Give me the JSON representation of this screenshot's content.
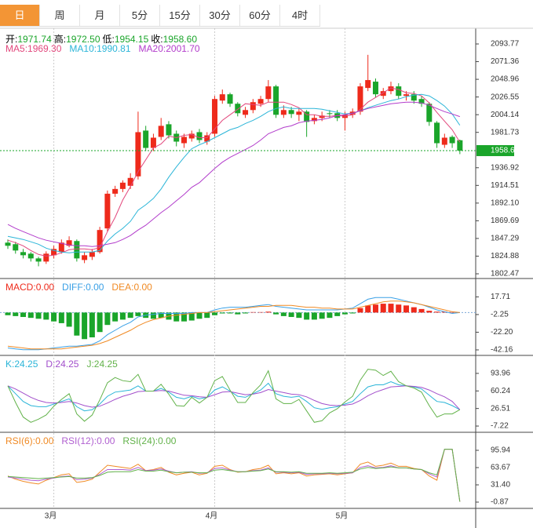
{
  "tabs": [
    "日",
    "周",
    "月",
    "5分",
    "15分",
    "30分",
    "60分",
    "4时"
  ],
  "active_tab": 0,
  "chart_data": [
    {
      "type": "candlestick",
      "up_color": "#ee2a1b",
      "down_color": "#1aa52a",
      "last_price_line": true,
      "header": [
        {
          "name": "开",
          "label": "1971.74"
        },
        {
          "name": "高",
          "label": "1972.50"
        },
        {
          "name": "低",
          "label": "1954.15"
        },
        {
          "name": "收",
          "label": "1958.60"
        }
      ],
      "categories": [
        null,
        null,
        null,
        null,
        null,
        null,
        "3月",
        null,
        null,
        null,
        null,
        null,
        null,
        null,
        null,
        null,
        null,
        null,
        null,
        null,
        null,
        null,
        null,
        null,
        null,
        null,
        null,
        "4月",
        null,
        null,
        null,
        null,
        null,
        null,
        null,
        null,
        null,
        null,
        null,
        null,
        null,
        null,
        null,
        null,
        "5月",
        null,
        null,
        null,
        null,
        null,
        null,
        null,
        null,
        null,
        null,
        null,
        null,
        null,
        null,
        null
      ],
      "open": [
        1842,
        1840,
        1830,
        1828,
        1822,
        1818,
        1826,
        1830,
        1838,
        1844,
        1820,
        1824,
        1830,
        1860,
        1904,
        1910,
        1914,
        1926,
        1984,
        1962,
        1976,
        1992,
        1980,
        1968,
        1974,
        1982,
        1970,
        1980,
        2022,
        2030,
        2018,
        2004,
        2010,
        2018,
        2024,
        2040,
        2004,
        2010,
        2004,
        2008,
        1996,
        2000,
        2006,
        2006,
        2000,
        2004,
        2008,
        2038,
        2046,
        2028,
        2034,
        2040,
        2028,
        2030,
        2024,
        2018,
        1994,
        1966,
        1976,
        1971.74
      ],
      "high": [
        1846,
        1843,
        1834,
        1830,
        1824,
        1831,
        1838,
        1846,
        1850,
        1846,
        1830,
        1834,
        1862,
        1908,
        1914,
        1921,
        1930,
        2008,
        1990,
        1980,
        2000,
        1996,
        1984,
        1980,
        1984,
        1986,
        1982,
        2028,
        2036,
        2032,
        2020,
        2014,
        2024,
        2028,
        2048,
        2042,
        2016,
        2014,
        2012,
        2010,
        2004,
        2008,
        2010,
        2010,
        2008,
        2012,
        2044,
        2080,
        2050,
        2038,
        2046,
        2044,
        2034,
        2034,
        2028,
        2020,
        1996,
        1980,
        1978,
        1972.5
      ],
      "low": [
        1834,
        1828,
        1822,
        1818,
        1812,
        1815,
        1822,
        1828,
        1836,
        1818,
        1816,
        1820,
        1828,
        1856,
        1900,
        1906,
        1910,
        1922,
        1958,
        1958,
        1972,
        1974,
        1964,
        1962,
        1970,
        1968,
        1966,
        1976,
        2018,
        2014,
        2002,
        2000,
        2006,
        2014,
        2020,
        2000,
        2000,
        2000,
        1996,
        1976,
        1992,
        1996,
        2000,
        1996,
        1984,
        2000,
        2004,
        2034,
        2026,
        2024,
        2030,
        2024,
        2022,
        2018,
        2014,
        1990,
        1962,
        1962,
        1962,
        1954.15
      ],
      "close": [
        1838,
        1832,
        1826,
        1822,
        1818,
        1828,
        1834,
        1842,
        1845,
        1822,
        1826,
        1830,
        1858,
        1904,
        1910,
        1918,
        1924,
        1982,
        1962,
        1975,
        1990,
        1978,
        1970,
        1976,
        1980,
        1972,
        1978,
        2024,
        2030,
        2018,
        2006,
        2010,
        2020,
        2024,
        2040,
        2004,
        2010,
        2005,
        2008,
        1995,
        2000,
        2003,
        2005,
        2000,
        2004,
        2008,
        2040,
        2048,
        2030,
        2034,
        2040,
        2028,
        2030,
        2022,
        2018,
        1995,
        1968,
        1975,
        1968,
        1958.6
      ],
      "series": [
        {
          "name": "MA5",
          "color": "#e2477c",
          "last_label": "1969.30",
          "values": [
            1845,
            1842,
            1838,
            1832,
            1827,
            1825,
            1826,
            1829,
            1833,
            1834,
            1834,
            1833,
            1836,
            1856,
            1874,
            1896,
            1913,
            1932,
            1947,
            1962,
            1967,
            1977,
            1975,
            1978,
            1979,
            1975,
            1975,
            1986,
            1997,
            2004,
            2011,
            2018,
            2017,
            2016,
            2020,
            2020,
            2020,
            2017,
            2013,
            2004,
            2004,
            2002,
            2002,
            2003,
            2002,
            2004,
            2011,
            2020,
            2026,
            2032,
            2038,
            2036,
            2032,
            2031,
            2028,
            2019,
            2007,
            1996,
            1985,
            1969.3
          ]
        },
        {
          "name": "MA10",
          "color": "#2bb5d8",
          "last_label": "1990.81",
          "values": [
            1850,
            1848,
            1846,
            1843,
            1840,
            1835,
            1832,
            1830,
            1829,
            1830,
            1830,
            1830,
            1832,
            1844,
            1853,
            1860,
            1869,
            1883,
            1890,
            1898,
            1910,
            1925,
            1938,
            1950,
            1961,
            1966,
            1970,
            1975,
            1980,
            1985,
            1988,
            1993,
            1997,
            2002,
            2008,
            2012,
            2014,
            2012,
            2012,
            2012,
            2012,
            2011,
            2009,
            2007,
            2005,
            2006,
            2009,
            2013,
            2016,
            2019,
            2022,
            2024,
            2027,
            2029,
            2030,
            2028,
            2022,
            2015,
            2005,
            1990.81
          ]
        },
        {
          "name": "MA20",
          "color": "#b23ccb",
          "last_label": "2001.70",
          "values": [
            1865,
            1860,
            1856,
            1852,
            1848,
            1845,
            1843,
            1841,
            1839,
            1838,
            1838,
            1837,
            1838,
            1840,
            1842,
            1846,
            1851,
            1858,
            1864,
            1872,
            1880,
            1887,
            1895,
            1903,
            1912,
            1918,
            1927,
            1936,
            1944,
            1950,
            1955,
            1960,
            1965,
            1972,
            1980,
            1984,
            1988,
            1990,
            1994,
            1996,
            1997,
            1998,
            2000,
            2003,
            2004,
            2006,
            2009,
            2012,
            2014,
            2016,
            2018,
            2019,
            2020,
            2020,
            2019,
            2016,
            2012,
            2008,
            2005,
            2001.7
          ]
        }
      ],
      "ylim": [
        1799.5,
        2109.7
      ],
      "yticks": [
        2093.77,
        2071.36,
        2048.96,
        2026.55,
        2004.14,
        1981.73,
        1936.92,
        1914.51,
        {
          "value": 1892.1,
          "label": "1892.10"
        },
        1869.69,
        1847.29,
        1824.88,
        1802.47
      ]
    },
    {
      "type": "macd",
      "up_color": "#ee2a1b",
      "down_color": "#1aa52a",
      "series": [
        {
          "name": "MACD",
          "style": "histogram",
          "color": "#ee2a1b",
          "last_label": "0.00",
          "values": [
            -3,
            -4,
            -5,
            -6,
            -7,
            -8,
            -10,
            -12,
            -16,
            -26,
            -30,
            -28,
            -22,
            -14,
            -10,
            -8,
            -6,
            -4,
            -6,
            -7,
            -6,
            -8,
            -10,
            -10,
            -9,
            -7,
            -6,
            -3,
            -1,
            -1,
            -2,
            -1,
            0.5,
            0.5,
            1,
            -2,
            -4,
            -5,
            -6,
            -8,
            -8,
            -7,
            -6,
            -4,
            -2,
            -1,
            5,
            8,
            9,
            10,
            10,
            9,
            8,
            6,
            4,
            2,
            1,
            1,
            0.5,
            0
          ]
        },
        {
          "name": "DIFF",
          "style": "line",
          "color": "#3aa0e6",
          "last_label": "0.00",
          "values": [
            -40,
            -41,
            -42,
            -42,
            -42,
            -41,
            -40,
            -39,
            -38,
            -38,
            -37,
            -36,
            -32,
            -25,
            -20,
            -15,
            -11,
            -5,
            -3,
            -2,
            -1,
            -1,
            -1,
            -1,
            0,
            0,
            0,
            3,
            5,
            6,
            6,
            6,
            7,
            8,
            9,
            7,
            6,
            5,
            4,
            3,
            3,
            3,
            3,
            3,
            4,
            5,
            10,
            15,
            17,
            17,
            17,
            15,
            13,
            11,
            9,
            6,
            3,
            1,
            -1,
            0
          ]
        },
        {
          "name": "DEA",
          "style": "line",
          "color": "#f08a24",
          "last_label": "0.00",
          "values": [
            -38,
            -39,
            -40,
            -41,
            -41,
            -41,
            -41,
            -41,
            -40,
            -39,
            -38,
            -37,
            -35,
            -32,
            -28,
            -24,
            -20,
            -15,
            -11,
            -8,
            -6,
            -4,
            -3,
            -2,
            -1,
            0,
            0,
            1,
            2,
            3,
            4,
            5,
            6,
            7,
            7,
            8,
            8,
            8,
            7,
            6,
            6,
            5,
            5,
            4,
            4,
            4,
            6,
            8,
            10,
            12,
            13,
            13,
            12,
            11,
            9,
            7,
            5,
            3,
            1,
            0
          ]
        }
      ],
      "ylim": [
        -47.5,
        34
      ],
      "yticks": [
        17.71,
        -2.25,
        {
          "value": -22.2,
          "label": "-22.20"
        },
        -42.16
      ]
    },
    {
      "type": "line",
      "series": [
        {
          "name": "K",
          "color": "#2bb5d8",
          "last_label": "24.25",
          "values": [
            70,
            55,
            40,
            32,
            30,
            30,
            35,
            40,
            45,
            30,
            22,
            24,
            35,
            50,
            58,
            60,
            62,
            70,
            60,
            60,
            65,
            58,
            48,
            45,
            50,
            45,
            48,
            62,
            68,
            60,
            50,
            48,
            55,
            62,
            75,
            55,
            50,
            48,
            50,
            40,
            28,
            25,
            28,
            30,
            35,
            40,
            55,
            68,
            72,
            72,
            78,
            72,
            70,
            68,
            64,
            52,
            40,
            38,
            32,
            24.25
          ]
        },
        {
          "name": "D",
          "color": "#a24fcb",
          "last_label": "24.25",
          "values": [
            70,
            64,
            56,
            48,
            42,
            38,
            37,
            38,
            40,
            37,
            32,
            29,
            31,
            37,
            44,
            50,
            54,
            59,
            60,
            60,
            61,
            60,
            56,
            52,
            51,
            49,
            48,
            53,
            58,
            59,
            56,
            53,
            54,
            57,
            63,
            60,
            57,
            54,
            53,
            49,
            42,
            36,
            33,
            32,
            33,
            35,
            42,
            51,
            58,
            63,
            68,
            69,
            70,
            69,
            67,
            62,
            55,
            49,
            40,
            24.25
          ]
        },
        {
          "name": "J",
          "color": "#62b24a",
          "last_label": "24.25",
          "values": [
            70,
            38,
            10,
            0,
            6,
            14,
            31,
            44,
            55,
            16,
            2,
            14,
            43,
            76,
            86,
            80,
            78,
            92,
            60,
            60,
            73,
            54,
            32,
            31,
            48,
            37,
            48,
            80,
            88,
            62,
            38,
            38,
            57,
            72,
            99,
            45,
            36,
            36,
            44,
            22,
            0,
            3,
            18,
            26,
            39,
            50,
            81,
            102,
            100,
            90,
            98,
            78,
            70,
            66,
            58,
            32,
            10,
            16,
            16,
            24.25
          ]
        }
      ],
      "ylim": [
        -17.7,
        125.5
      ],
      "yticks": [
        93.96,
        60.24,
        26.51,
        -7.22
      ]
    },
    {
      "type": "line",
      "series": [
        {
          "name": "RSI(6)",
          "color": "#f08a24",
          "last_label": "0.00",
          "values": [
            48,
            42,
            38,
            35,
            33,
            40,
            45,
            50,
            52,
            36,
            38,
            42,
            55,
            68,
            66,
            64,
            62,
            70,
            58,
            60,
            64,
            55,
            50,
            53,
            55,
            50,
            53,
            66,
            68,
            60,
            55,
            56,
            60,
            62,
            68,
            52,
            54,
            52,
            54,
            48,
            50,
            51,
            52,
            50,
            52,
            54,
            70,
            74,
            66,
            68,
            72,
            66,
            66,
            62,
            60,
            48,
            40,
            98,
            98,
            0
          ]
        },
        {
          "name": "RSI(12)",
          "color": "#b05fd0",
          "last_label": "0.00",
          "values": [
            46,
            44,
            42,
            40,
            39,
            42,
            44,
            47,
            48,
            41,
            42,
            44,
            51,
            60,
            60,
            60,
            59,
            64,
            58,
            59,
            61,
            57,
            54,
            55,
            56,
            53,
            54,
            62,
            63,
            59,
            56,
            56,
            58,
            59,
            63,
            55,
            55,
            54,
            55,
            51,
            52,
            52,
            53,
            52,
            53,
            54,
            64,
            67,
            63,
            64,
            67,
            63,
            63,
            61,
            60,
            52,
            46,
            98,
            98,
            0
          ]
        },
        {
          "name": "RSI(24)",
          "color": "#62b24a",
          "last_label": "0.00",
          "values": [
            47,
            46,
            45,
            44,
            43,
            44,
            45,
            46,
            47,
            44,
            44,
            45,
            49,
            55,
            56,
            56,
            56,
            60,
            57,
            57,
            59,
            56,
            54,
            55,
            55,
            54,
            54,
            59,
            60,
            58,
            56,
            56,
            57,
            58,
            61,
            56,
            56,
            55,
            56,
            53,
            53,
            53,
            54,
            53,
            54,
            55,
            61,
            64,
            62,
            63,
            65,
            63,
            63,
            61,
            60,
            54,
            50,
            98,
            98,
            0
          ]
        }
      ],
      "ylim": [
        -12.6,
        126.7
      ],
      "yticks": [
        95.94,
        63.67,
        {
          "value": 31.4,
          "label": "31.40"
        },
        -0.87
      ]
    }
  ]
}
